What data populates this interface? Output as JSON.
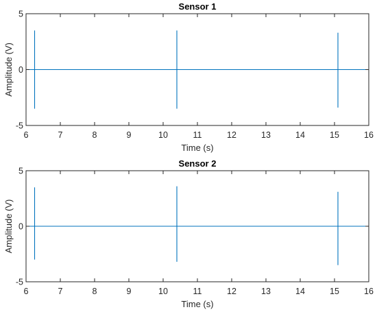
{
  "chart_data": [
    {
      "type": "line",
      "title": "Sensor 1",
      "xlabel": "Time (s)",
      "ylabel": "Amplitude (V)",
      "xlim": [
        6,
        16
      ],
      "ylim": [
        -5,
        5
      ],
      "xticks": [
        "6",
        "7",
        "8",
        "9",
        "10",
        "11",
        "12",
        "13",
        "14",
        "15",
        "16"
      ],
      "yticks": [
        "-5",
        "0",
        "5"
      ],
      "grid": false,
      "baseline": 0,
      "color": "#0072BD",
      "spikes": [
        {
          "x": 6.25,
          "ymax": 3.5,
          "ymin": -3.5
        },
        {
          "x": 10.4,
          "ymax": 3.5,
          "ymin": -3.5
        },
        {
          "x": 15.1,
          "ymax": 3.3,
          "ymin": -3.4
        }
      ]
    },
    {
      "type": "line",
      "title": "Sensor 2",
      "xlabel": "Time (s)",
      "ylabel": "Amplitude (V)",
      "xlim": [
        6,
        16
      ],
      "ylim": [
        -5,
        5
      ],
      "xticks": [
        "6",
        "7",
        "8",
        "9",
        "10",
        "11",
        "12",
        "13",
        "14",
        "15",
        "16"
      ],
      "yticks": [
        "-5",
        "0",
        "5"
      ],
      "grid": false,
      "baseline": 0,
      "color": "#0072BD",
      "spikes": [
        {
          "x": 6.25,
          "ymax": 3.5,
          "ymin": -3.0
        },
        {
          "x": 10.4,
          "ymax": 3.6,
          "ymin": -3.2
        },
        {
          "x": 15.1,
          "ymax": 3.1,
          "ymin": -3.5
        }
      ]
    }
  ]
}
